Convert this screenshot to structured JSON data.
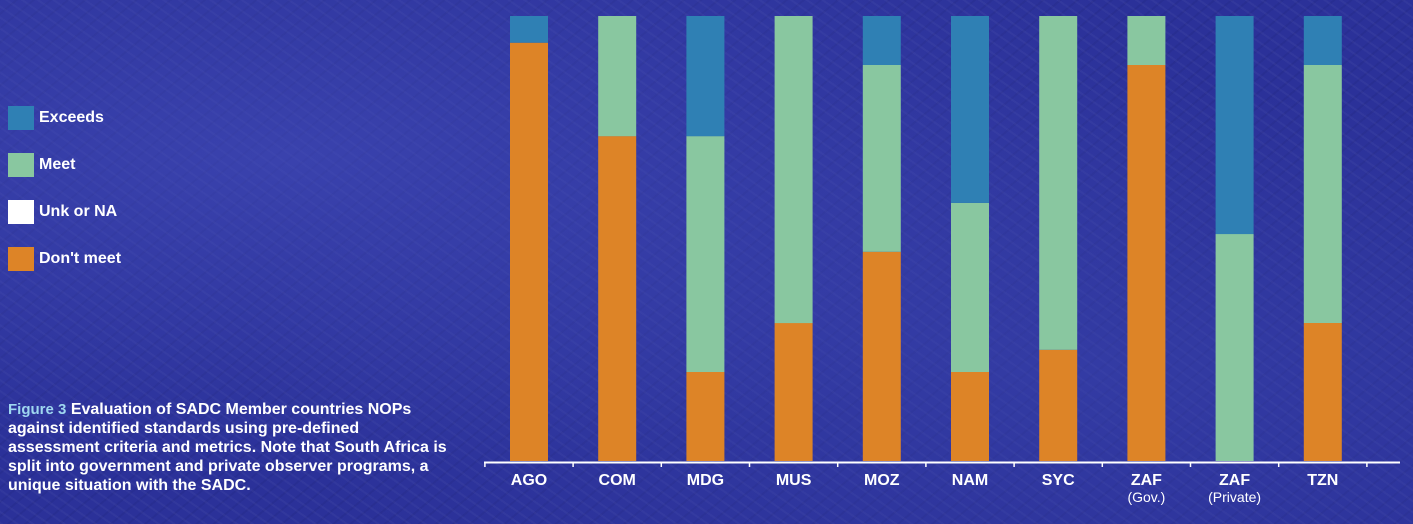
{
  "colors": {
    "exceeds": "#2f80b4",
    "meet": "#89c7a0",
    "unk": "#ffffff",
    "dont_meet": "#dd8427",
    "axis": "#ffffff"
  },
  "legend": [
    {
      "key": "exceeds",
      "label": "Exceeds"
    },
    {
      "key": "meet",
      "label": "Meet"
    },
    {
      "key": "unk",
      "label": "Unk or NA"
    },
    {
      "key": "dont_meet",
      "label": "Don't meet"
    }
  ],
  "caption": {
    "figure_number": "Figure 3",
    "text": "Evaluation of SADC Member countries NOPs against identified standards using pre-defined assessment criteria and metrics. Note that South Africa is split into government and private observer programs, a unique situation with the SADC."
  },
  "chart_data": {
    "type": "bar",
    "stacked": true,
    "title": "",
    "xlabel": "",
    "ylabel": "",
    "ylim": [
      0,
      100
    ],
    "grid": false,
    "legend_placement": "left",
    "categories": [
      "AGO",
      "COM",
      "MDG",
      "MUS",
      "MOZ",
      "NAM",
      "SYC",
      "ZAF",
      "ZAF",
      "TZN"
    ],
    "category_sublabels": [
      "",
      "",
      "",
      "",
      "",
      "",
      "",
      "(Gov.)",
      "(Private)",
      ""
    ],
    "series": [
      {
        "name": "Don't meet",
        "color_key": "dont_meet",
        "values": [
          94,
          73,
          20,
          31,
          47,
          20,
          25,
          89,
          0,
          31
        ]
      },
      {
        "name": "Unk or NA",
        "color_key": "unk",
        "values": [
          0,
          0,
          0,
          0,
          0,
          0,
          0,
          0,
          0,
          0
        ]
      },
      {
        "name": "Meet",
        "color_key": "meet",
        "values": [
          0,
          27,
          53,
          69,
          42,
          38,
          75,
          11,
          51,
          58
        ]
      },
      {
        "name": "Exceeds",
        "color_key": "exceeds",
        "values": [
          6,
          0,
          27,
          0,
          11,
          42,
          0,
          0,
          49,
          11
        ]
      }
    ]
  }
}
